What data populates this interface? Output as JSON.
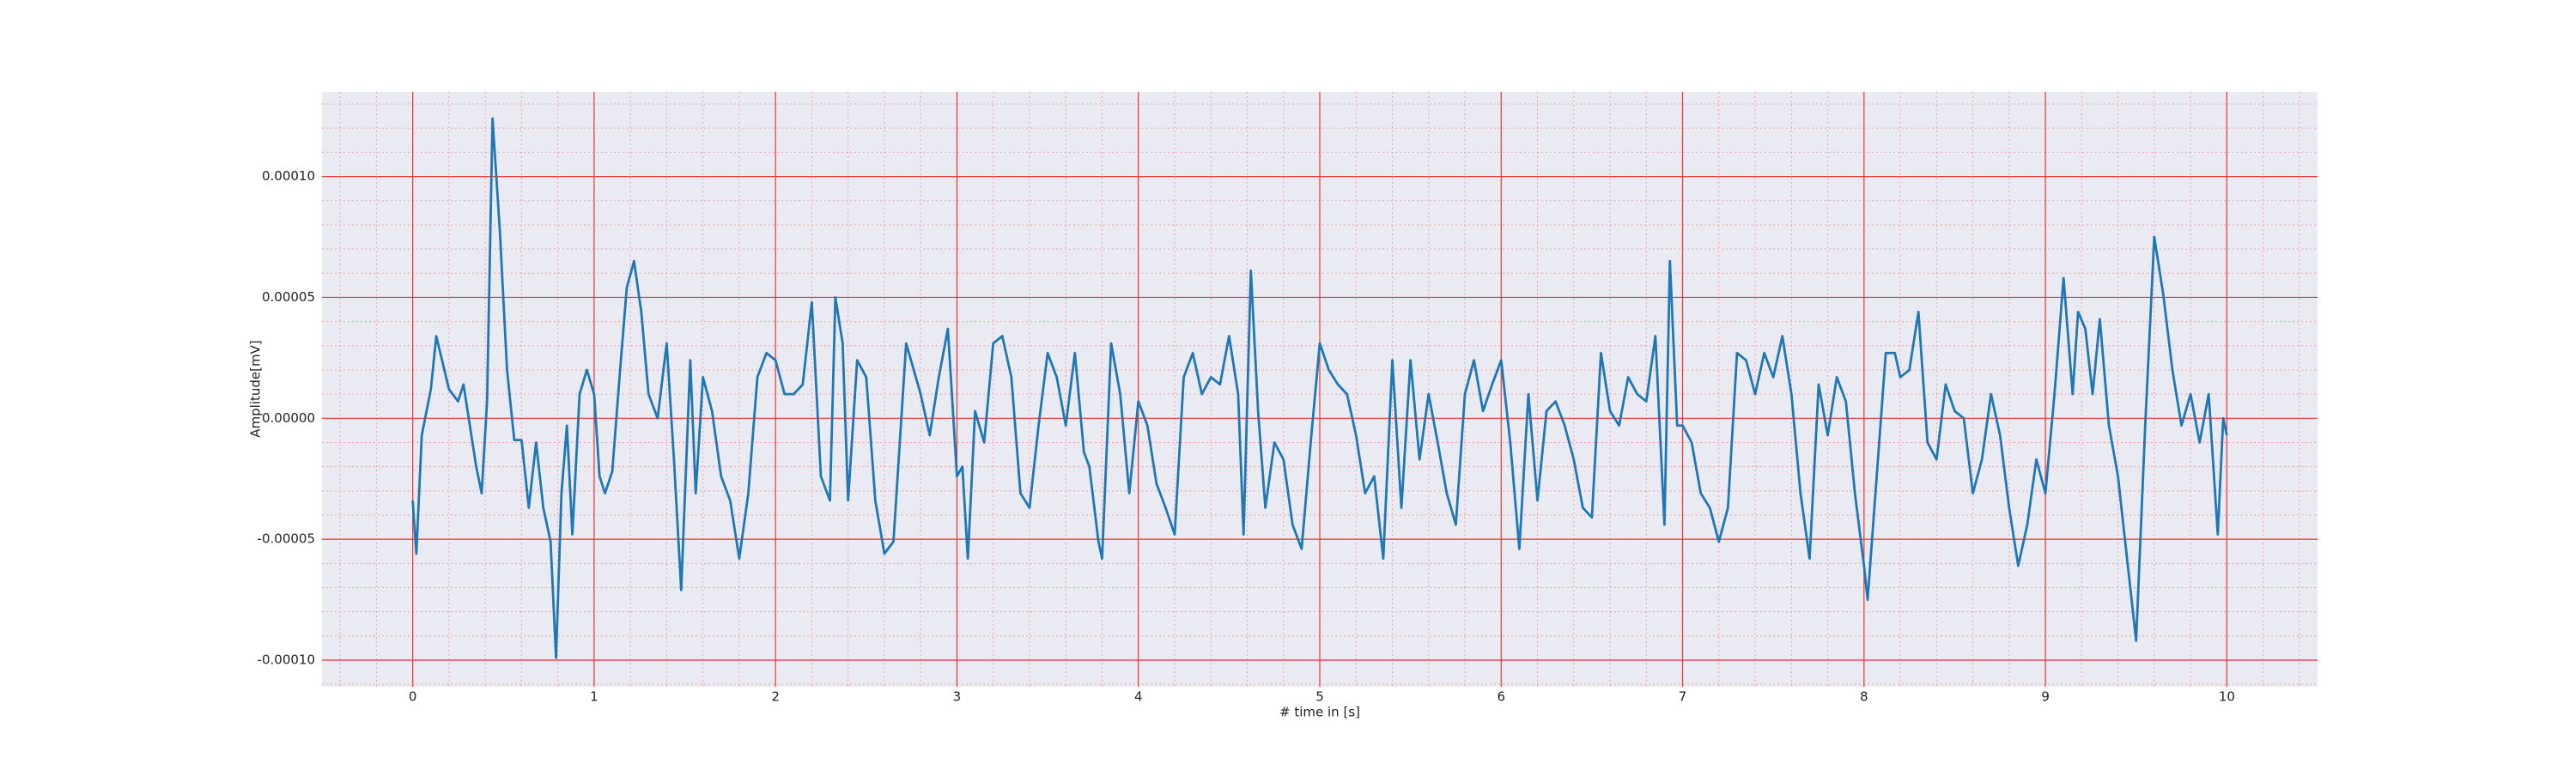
{
  "chart_data": {
    "type": "line",
    "xlabel": "# time in [s]",
    "ylabel": "Amplitude[mV]",
    "x": [
      0,
      0.02,
      0.05,
      0.1,
      0.13,
      0.2,
      0.25,
      0.28,
      0.35,
      0.38,
      0.41,
      0.44,
      0.48,
      0.52,
      0.56,
      0.6,
      0.64,
      0.68,
      0.72,
      0.76,
      0.79,
      0.82,
      0.85,
      0.88,
      0.92,
      0.96,
      1.0,
      1.03,
      1.06,
      1.1,
      1.14,
      1.18,
      1.22,
      1.26,
      1.3,
      1.35,
      1.4,
      1.44,
      1.48,
      1.53,
      1.56,
      1.6,
      1.65,
      1.7,
      1.75,
      1.8,
      1.85,
      1.9,
      1.95,
      2.0,
      2.05,
      2.1,
      2.15,
      2.2,
      2.25,
      2.3,
      2.33,
      2.37,
      2.4,
      2.45,
      2.5,
      2.55,
      2.6,
      2.65,
      2.72,
      2.8,
      2.85,
      2.9,
      2.95,
      3.0,
      3.03,
      3.06,
      3.1,
      3.15,
      3.2,
      3.25,
      3.3,
      3.35,
      3.4,
      3.45,
      3.5,
      3.55,
      3.6,
      3.65,
      3.7,
      3.73,
      3.78,
      3.8,
      3.85,
      3.9,
      3.95,
      4.0,
      4.05,
      4.1,
      4.15,
      4.2,
      4.25,
      4.3,
      4.35,
      4.4,
      4.45,
      4.5,
      4.55,
      4.58,
      4.62,
      4.66,
      4.7,
      4.75,
      4.8,
      4.85,
      4.9,
      4.95,
      5.0,
      5.05,
      5.1,
      5.15,
      5.2,
      5.25,
      5.3,
      5.35,
      5.4,
      5.45,
      5.5,
      5.55,
      5.6,
      5.65,
      5.7,
      5.75,
      5.8,
      5.85,
      5.9,
      5.95,
      6.0,
      6.05,
      6.1,
      6.15,
      6.2,
      6.25,
      6.3,
      6.35,
      6.4,
      6.45,
      6.5,
      6.55,
      6.6,
      6.65,
      6.7,
      6.75,
      6.8,
      6.85,
      6.9,
      6.93,
      6.97,
      7.0,
      7.05,
      7.1,
      7.15,
      7.2,
      7.25,
      7.3,
      7.35,
      7.4,
      7.45,
      7.5,
      7.55,
      7.6,
      7.65,
      7.7,
      7.75,
      7.8,
      7.85,
      7.9,
      7.95,
      8.0,
      8.02,
      8.07,
      8.12,
      8.17,
      8.2,
      8.25,
      8.3,
      8.35,
      8.4,
      8.45,
      8.5,
      8.55,
      8.6,
      8.65,
      8.7,
      8.75,
      8.8,
      8.85,
      8.9,
      8.95,
      9.0,
      9.05,
      9.1,
      9.15,
      9.18,
      9.22,
      9.26,
      9.3,
      9.35,
      9.4,
      9.45,
      9.5,
      9.55,
      9.6,
      9.65,
      9.7,
      9.75,
      9.8,
      9.85,
      9.9,
      9.95,
      9.98,
      10.0
    ],
    "values": [
      -3.4e-05,
      -5.6e-05,
      -7e-06,
      1.2e-05,
      3.4e-05,
      1.2e-05,
      7e-06,
      1.4e-05,
      -2e-05,
      -3.1e-05,
      7e-06,
      0.000124,
      7.8e-05,
      2e-05,
      -9e-06,
      -9e-06,
      -3.7e-05,
      -1e-05,
      -3.7e-05,
      -5.1e-05,
      -9.9e-05,
      -3.1e-05,
      -3e-06,
      -4.8e-05,
      1e-05,
      2e-05,
      1e-05,
      -2.4e-05,
      -3.1e-05,
      -2.2e-05,
      1.7e-05,
      5.4e-05,
      6.5e-05,
      4.4e-05,
      1e-05,
      0,
      3.1e-05,
      -1.7e-05,
      -7.1e-05,
      2.4e-05,
      -3.1e-05,
      1.7e-05,
      3e-06,
      -2.4e-05,
      -3.4e-05,
      -5.8e-05,
      -3.1e-05,
      1.7e-05,
      2.7e-05,
      2.4e-05,
      1e-05,
      1e-05,
      1.4e-05,
      4.8e-05,
      -2.4e-05,
      -3.4e-05,
      5e-05,
      3.1e-05,
      -3.4e-05,
      2.4e-05,
      1.7e-05,
      -3.4e-05,
      -5.6e-05,
      -5.1e-05,
      3.1e-05,
      1e-05,
      -7e-06,
      1.7e-05,
      3.7e-05,
      -2.4e-05,
      -2e-05,
      -5.8e-05,
      3e-06,
      -1e-05,
      3.1e-05,
      3.4e-05,
      1.7e-05,
      -3.1e-05,
      -3.7e-05,
      -3e-06,
      2.7e-05,
      1.7e-05,
      -3e-06,
      2.7e-05,
      -1.4e-05,
      -2e-05,
      -5.1e-05,
      -5.8e-05,
      3.1e-05,
      1e-05,
      -3.1e-05,
      7e-06,
      -3e-06,
      -2.7e-05,
      -3.7e-05,
      -4.8e-05,
      1.7e-05,
      2.7e-05,
      1e-05,
      1.7e-05,
      1.4e-05,
      3.4e-05,
      1e-05,
      -4.8e-05,
      6.1e-05,
      3e-06,
      -3.7e-05,
      -1e-05,
      -1.7e-05,
      -4.4e-05,
      -5.4e-05,
      -1e-05,
      3.1e-05,
      2e-05,
      1.4e-05,
      1e-05,
      -7e-06,
      -3.1e-05,
      -2.4e-05,
      -5.8e-05,
      2.4e-05,
      -3.7e-05,
      2.4e-05,
      -1.7e-05,
      1e-05,
      -1e-05,
      -3.1e-05,
      -4.4e-05,
      1e-05,
      2.4e-05,
      3e-06,
      1.4e-05,
      2.4e-05,
      -1e-05,
      -5.4e-05,
      1e-05,
      -3.4e-05,
      3e-06,
      7e-06,
      -3e-06,
      -1.7e-05,
      -3.7e-05,
      -4.1e-05,
      2.7e-05,
      3e-06,
      -3e-06,
      1.7e-05,
      1e-05,
      7e-06,
      3.4e-05,
      -4.4e-05,
      6.5e-05,
      -3e-06,
      -3e-06,
      -1e-05,
      -3.1e-05,
      -3.7e-05,
      -5.1e-05,
      -3.7e-05,
      2.7e-05,
      2.4e-05,
      1e-05,
      2.7e-05,
      1.7e-05,
      3.4e-05,
      1e-05,
      -3.1e-05,
      -5.8e-05,
      1.4e-05,
      -7e-06,
      1.7e-05,
      7e-06,
      -3.1e-05,
      -6.1e-05,
      -7.5e-05,
      -2.4e-05,
      2.7e-05,
      2.7e-05,
      1.7e-05,
      2e-05,
      4.4e-05,
      -1e-05,
      -1.7e-05,
      1.4e-05,
      3e-06,
      0,
      -3.1e-05,
      -1.7e-05,
      1e-05,
      -7e-06,
      -3.7e-05,
      -6.1e-05,
      -4.4e-05,
      -1.7e-05,
      -3.1e-05,
      1e-05,
      5.8e-05,
      1e-05,
      4.4e-05,
      3.7e-05,
      1e-05,
      4.1e-05,
      -3e-06,
      -2.4e-05,
      -5.8e-05,
      -9.2e-05,
      -3e-06,
      7.5e-05,
      5.1e-05,
      2e-05,
      -3e-06,
      1e-05,
      -1e-05,
      1e-05,
      -4.8e-05,
      0,
      -7e-06
    ],
    "color": "#1f77b4",
    "xlim": [
      -0.5,
      10.5
    ],
    "ylim": [
      -0.000111,
      0.000135
    ],
    "xticks": [
      0,
      1,
      2,
      3,
      4,
      5,
      6,
      7,
      8,
      9,
      10
    ],
    "yticks": [
      {
        "value": -0.0001,
        "label": "-0.00010"
      },
      {
        "value": -5e-05,
        "label": "-0.00005"
      },
      {
        "value": 0,
        "label": "0.00000"
      },
      {
        "value": 5e-05,
        "label": "0.00005"
      },
      {
        "value": 0.0001,
        "label": "0.00010"
      }
    ],
    "xminorticks": [
      -0.4,
      -0.2,
      0.2,
      0.4,
      0.6,
      0.8,
      1.2,
      1.4,
      1.6,
      1.8,
      2.2,
      2.4,
      2.6,
      2.8,
      3.2,
      3.4,
      3.6,
      3.8,
      4.2,
      4.4,
      4.6,
      4.8,
      5.2,
      5.4,
      5.6,
      5.8,
      6.2,
      6.4,
      6.6,
      6.8,
      7.2,
      7.4,
      7.6,
      7.8,
      8.2,
      8.4,
      8.6,
      8.8,
      9.2,
      9.4,
      9.6,
      9.8,
      10.2,
      10.4
    ],
    "yminorticks": [
      -0.00011,
      -9e-05,
      -8e-05,
      -7e-05,
      -6e-05,
      -4e-05,
      -3e-05,
      -2e-05,
      -1e-05,
      1e-05,
      2e-05,
      3e-05,
      4e-05,
      6e-05,
      7e-05,
      8e-05,
      9e-05,
      0.00011,
      0.00012,
      0.00013
    ],
    "grid": true,
    "minor_grid": true
  }
}
